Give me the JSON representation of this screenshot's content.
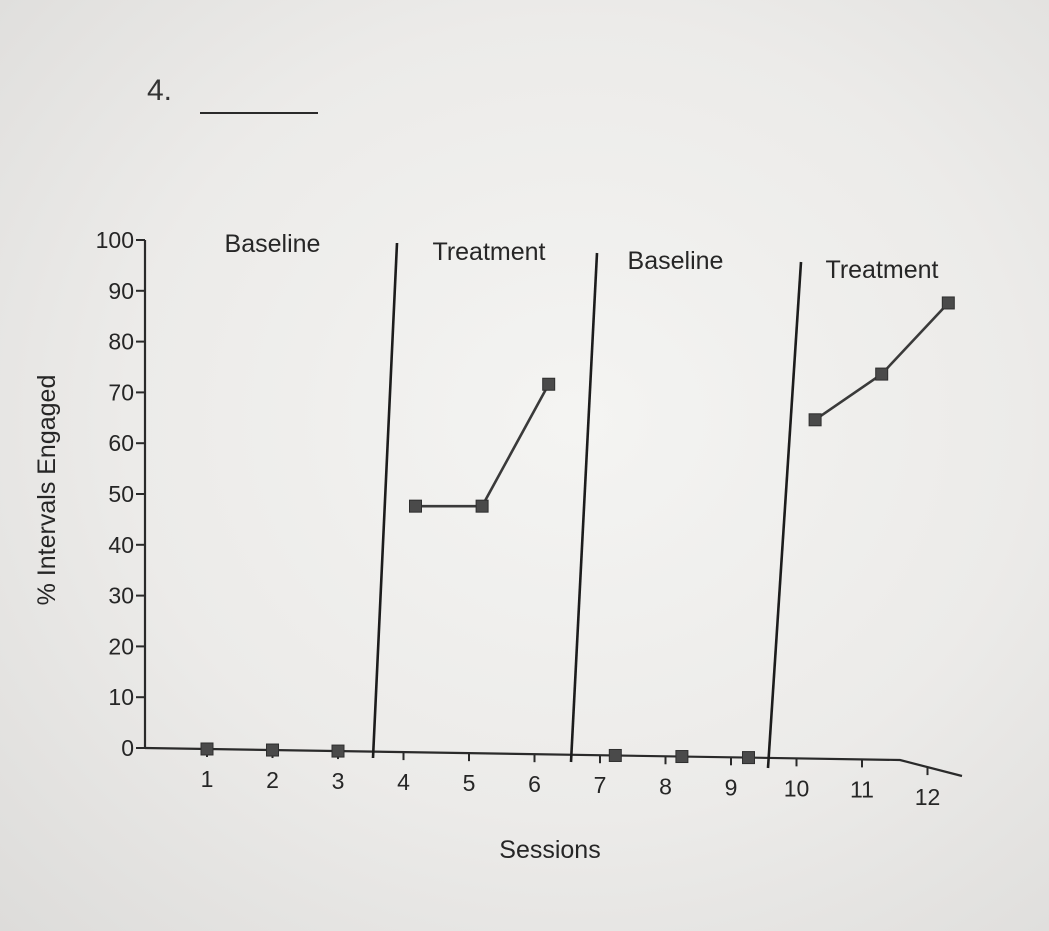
{
  "item_number": "4.",
  "chart_data": {
    "type": "line",
    "title": "",
    "xlabel": "Sessions",
    "ylabel": "% Intervals Engaged",
    "ylim": [
      0,
      100
    ],
    "yticks": [
      0,
      10,
      20,
      30,
      40,
      50,
      60,
      70,
      80,
      90,
      100
    ],
    "xticks": [
      1,
      2,
      3,
      4,
      5,
      6,
      7,
      8,
      9,
      10,
      11,
      12
    ],
    "grid": false,
    "phases": [
      {
        "label": "Baseline",
        "sessions": [
          1,
          2,
          3
        ]
      },
      {
        "label": "Treatment",
        "sessions": [
          4,
          5,
          6
        ]
      },
      {
        "label": "Baseline",
        "sessions": [
          7,
          8,
          9
        ]
      },
      {
        "label": "Treatment",
        "sessions": [
          10,
          11,
          12
        ]
      }
    ],
    "points": [
      {
        "x": 1,
        "y": 0
      },
      {
        "x": 2,
        "y": 0
      },
      {
        "x": 3,
        "y": 0
      },
      {
        "x": 4,
        "y": 48
      },
      {
        "x": 5,
        "y": 48
      },
      {
        "x": 6,
        "y": 72
      },
      {
        "x": 7,
        "y": 0
      },
      {
        "x": 8,
        "y": 0
      },
      {
        "x": 9,
        "y": 0
      },
      {
        "x": 10,
        "y": 65
      },
      {
        "x": 11,
        "y": 74
      },
      {
        "x": 12,
        "y": 88
      }
    ]
  }
}
